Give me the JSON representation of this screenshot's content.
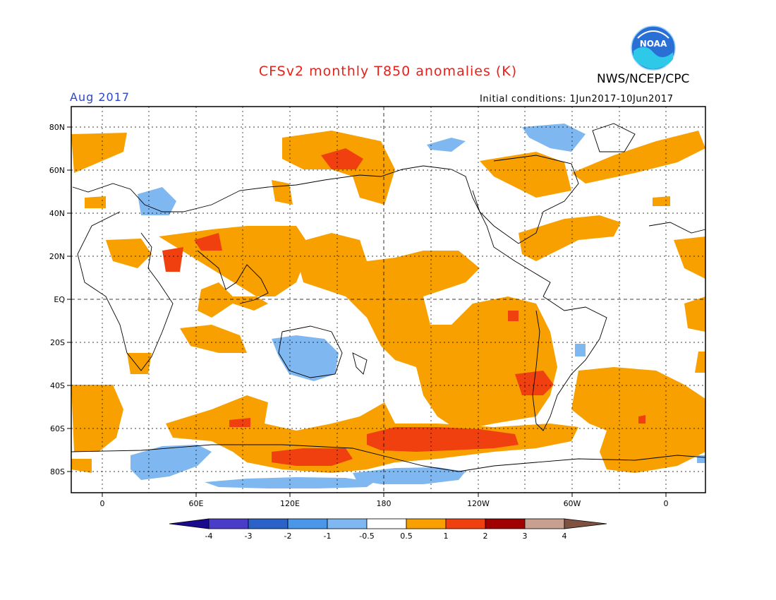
{
  "header": {
    "title": "CFSv2 monthly T850 anomalies (K)",
    "agency": "NWS/NCEP/CPC",
    "period": "Aug 2017",
    "initial_conditions": "Initial conditions: 1Jun2017-10Jun2017",
    "logo_text": "NOAA"
  },
  "map": {
    "projection": "equirectangular, centered on 180",
    "lat_labels": [
      "80N",
      "60N",
      "40N",
      "20N",
      "EQ",
      "20S",
      "40S",
      "60S",
      "80S"
    ],
    "lon_labels": [
      "0",
      "60E",
      "120E",
      "180",
      "120W",
      "60W",
      "0"
    ],
    "gridlines": "dotted every 30 degrees longitude and 20 degrees latitude; dashed equator and 180 meridian"
  },
  "colorbar": {
    "bins": [
      {
        "range": "< -4",
        "color": "#1a0a8c"
      },
      {
        "range": "-4 to -3",
        "color": "#4a3cc8"
      },
      {
        "range": "-3 to -2",
        "color": "#2a62c8"
      },
      {
        "range": "-2 to -1",
        "color": "#4a96e8"
      },
      {
        "range": "-1 to -0.5",
        "color": "#7fb8f0"
      },
      {
        "range": "-0.5 to 0.5",
        "color": "#ffffff"
      },
      {
        "range": "0.5 to 1",
        "color": "#f8a000"
      },
      {
        "range": "1 to 2",
        "color": "#f04010"
      },
      {
        "range": "2 to 3",
        "color": "#a00000"
      },
      {
        "range": "3 to 4",
        "color": "#c8a090"
      },
      {
        "range": "> 4",
        "color": "#805040"
      }
    ],
    "labels": [
      "-4",
      "-3",
      "-2",
      "-1",
      "-0.5",
      "0.5",
      "1",
      "2",
      "3",
      "4"
    ]
  },
  "colors": {
    "title": "#e8201a",
    "period": "#2d46c8",
    "warm1": "#f8a000",
    "warm2": "#f04010",
    "cool1": "#7fb8f0"
  }
}
